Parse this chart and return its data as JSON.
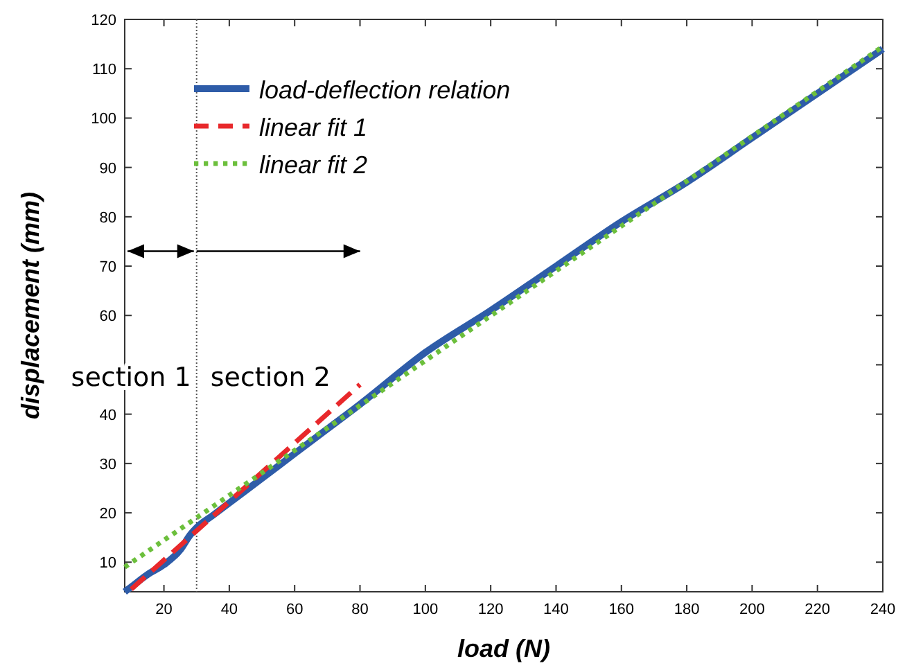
{
  "chart_data": {
    "type": "line",
    "xlabel": "load (N)",
    "ylabel": "displacement (mm)",
    "xlim": [
      8,
      240
    ],
    "xticks": [
      20,
      40,
      60,
      80,
      100,
      120,
      140,
      160,
      180,
      200,
      220,
      240
    ],
    "ylim": [
      4,
      120
    ],
    "yticks": [
      10,
      20,
      30,
      40,
      {
        "value": 50,
        "label": null
      },
      60,
      70,
      80,
      90,
      100,
      110,
      120
    ],
    "series": [
      {
        "name": "load-deflection relation",
        "color": "#2e5ca8",
        "line_style": "solid",
        "x": [
          8,
          10,
          15,
          20,
          25,
          28,
          30,
          35,
          40,
          50,
          60,
          70,
          80,
          100,
          120,
          140,
          160,
          180,
          200,
          220,
          240
        ],
        "values": [
          4,
          5,
          7.5,
          9.5,
          12.5,
          15.5,
          17,
          19.5,
          22,
          27,
          32,
          37,
          42,
          52.5,
          61,
          70,
          79,
          87,
          96,
          105,
          114
        ]
      },
      {
        "name": "linear fit 1",
        "color": "#e8282b",
        "line_style": "dashed",
        "x": [
          10,
          80
        ],
        "values": [
          4.5,
          46
        ]
      },
      {
        "name": "linear fit 2",
        "color": "#6cbf3c",
        "line_style": "dotted",
        "x": [
          8,
          240
        ],
        "values": [
          9,
          114.5
        ]
      }
    ],
    "ref_lines": [
      {
        "axis": "x",
        "value": 30,
        "line_style": "dotted",
        "color": "#555555"
      }
    ],
    "annotations": [
      "section 1",
      "section 2"
    ],
    "legend": "top left",
    "grid": false
  }
}
